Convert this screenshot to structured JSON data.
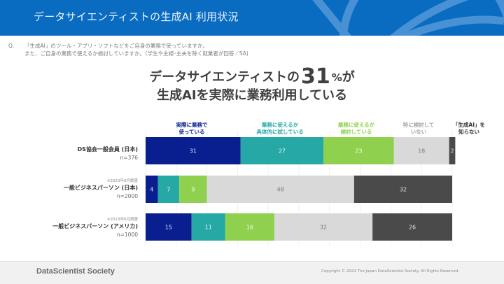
{
  "header": {
    "title": "データサイエンティストの生成AI 利用状況"
  },
  "question": {
    "mark": "Q.",
    "lines": [
      "「生成AI」のツール・アプリ・ソフトなどをご自身の業務で使っていますか。",
      "また、ご自身の業務で使えるか検討していますか。（学生や主婦･主夫を除く就業者が回答／SA)"
    ]
  },
  "headline": {
    "line1_prefix": "データサイエンティストの",
    "line1_number": "31",
    "line1_unit": "%",
    "line1_suffix": "が",
    "line2": "生成AIを実際に業務利用している"
  },
  "footer": {
    "brand": "DataScientist Society",
    "copyright": "Copyright © 2024  The Japan DataScientist Society. All Rights Reserved."
  },
  "chart_data": {
    "type": "bar",
    "orientation": "horizontal",
    "stacked": true,
    "unit": "%",
    "xlim": [
      0,
      100
    ],
    "grid": true,
    "legend_placement": "top",
    "categories": [
      {
        "name": "DS協会一般会員 (日本)",
        "n": "n=376",
        "note": ""
      },
      {
        "name": "一般ビジネスパーソン (日本)",
        "n": "n=2000",
        "note": "※2023年6月調査"
      },
      {
        "name": "一般ビジネスパーソン (アメリカ)",
        "n": "n=1000",
        "note": "※2023年6月調査"
      }
    ],
    "series": [
      {
        "name": "実際に業務で使っている",
        "label_lines": [
          "実際に業務で",
          "使っている"
        ],
        "color": "#0a1f8f",
        "legend_color": "#0a1f8f",
        "text_color": "#dfe6ff",
        "values": [
          31,
          4,
          15
        ]
      },
      {
        "name": "業務に使えるか具体的に試している",
        "label_lines": [
          "業務に使えるか",
          "具体的に試している"
        ],
        "color": "#26a9a6",
        "legend_color": "#26a9a6",
        "text_color": "#e0f7f6",
        "values": [
          27,
          7,
          11
        ]
      },
      {
        "name": "業務に使えるか検討している",
        "label_lines": [
          "業務に使えるか",
          "検討している"
        ],
        "color": "#8fd14f",
        "legend_color": "#8fd14f",
        "text_color": "#f2fbe8",
        "values": [
          23,
          9,
          16
        ]
      },
      {
        "name": "特に検討していない",
        "label_lines": [
          "特に検討して",
          "いない"
        ],
        "color": "#d9d9d9",
        "legend_color": "#a8a8a8",
        "text_color": "#7a7a7a",
        "values": [
          18,
          48,
          32
        ]
      },
      {
        "name": "「生成AI」を知らない",
        "label_lines": [
          "「生成AI」を",
          "知らない"
        ],
        "color": "#4a4a4a",
        "legend_color": "#333333",
        "text_color": "#e0e0e0",
        "values": [
          2,
          32,
          26
        ]
      }
    ]
  }
}
